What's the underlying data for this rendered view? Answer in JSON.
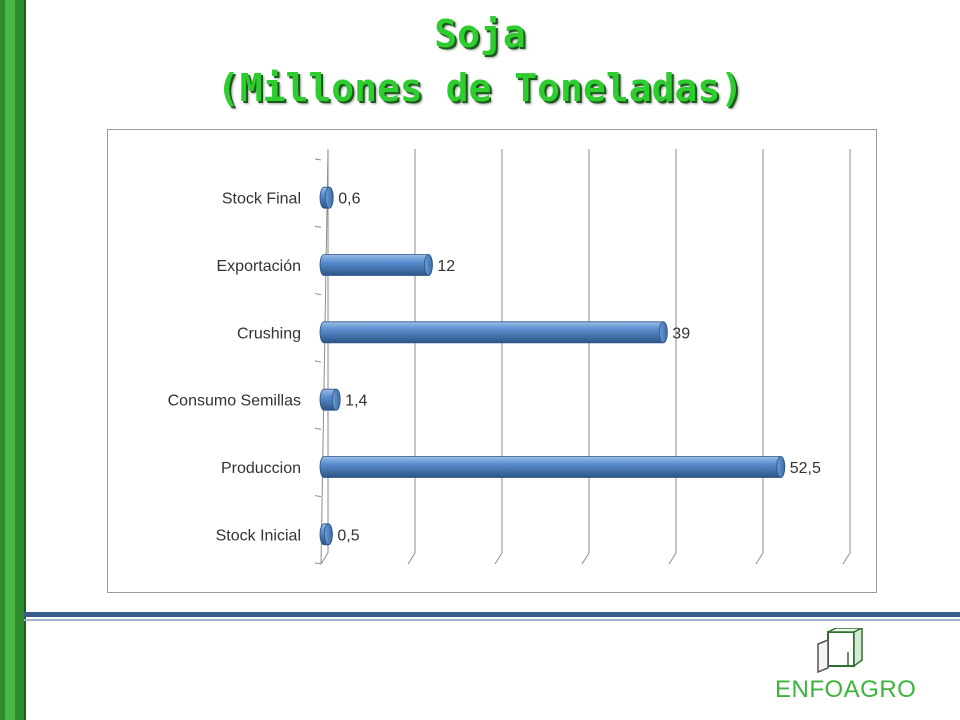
{
  "title": {
    "line1": "Soja",
    "line2": "(Millones de Toneladas)"
  },
  "brand": {
    "name": "ENFOAGRO"
  },
  "colors": {
    "bar": "#4a7ebb",
    "bar_dark": "#2c5586",
    "bar_light": "#8db3e2",
    "title_green": "#2ecc2e",
    "brand_green": "#3db33d",
    "grid": "#8c8c8c"
  },
  "chart_data": {
    "type": "bar",
    "orientation": "horizontal",
    "categories": [
      "Stock Final",
      "Exportación",
      "Crushing",
      "Consumo Semillas",
      "Produccion",
      "Stock Inicial"
    ],
    "values": [
      0.6,
      12,
      39,
      1.4,
      52.5,
      0.5
    ],
    "value_labels": [
      "0,6",
      "12",
      "39",
      "1,4",
      "52,5",
      "0,5"
    ],
    "xlim": [
      0,
      60
    ],
    "grid": true,
    "legend": "none"
  }
}
